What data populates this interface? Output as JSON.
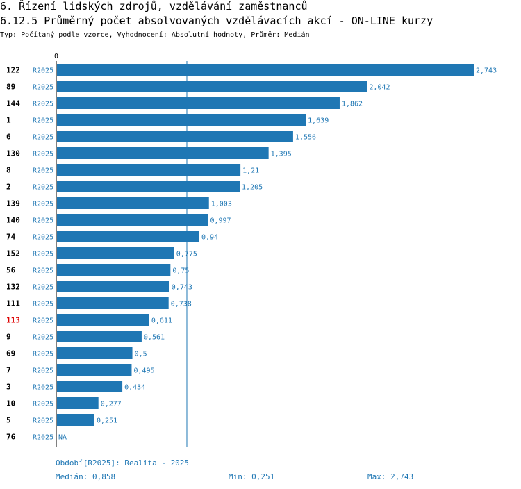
{
  "header": {
    "title": "6. Řízení lidských zdrojů, vzdělávání zaměstnanců",
    "subtitle": "6.12.5 Průměrný počet absolvovaných vzdělávacích akcí - ON-LINE kurzy",
    "description": "Typ: Počítaný podle vzorce, Vyhodnocení: Absolutní hodnoty, Průměr: Medián"
  },
  "chart_data": {
    "type": "bar",
    "orientation": "horizontal",
    "axis_zero_label": "0",
    "xlim": [
      0,
      2.743
    ],
    "median": 0.858,
    "colors": {
      "bar": "#1f77b4",
      "label": "#1f77b4",
      "highlight_id": "#dd0000",
      "id": "#000000"
    },
    "rows": [
      {
        "id": "122",
        "period": "R2025",
        "value": 2.743,
        "label": "2,743",
        "highlight": false
      },
      {
        "id": "89",
        "period": "R2025",
        "value": 2.042,
        "label": "2,042",
        "highlight": false
      },
      {
        "id": "144",
        "period": "R2025",
        "value": 1.862,
        "label": "1,862",
        "highlight": false
      },
      {
        "id": "1",
        "period": "R2025",
        "value": 1.639,
        "label": "1,639",
        "highlight": false
      },
      {
        "id": "6",
        "period": "R2025",
        "value": 1.556,
        "label": "1,556",
        "highlight": false
      },
      {
        "id": "130",
        "period": "R2025",
        "value": 1.395,
        "label": "1,395",
        "highlight": false
      },
      {
        "id": "8",
        "period": "R2025",
        "value": 1.21,
        "label": "1,21",
        "highlight": false
      },
      {
        "id": "2",
        "period": "R2025",
        "value": 1.205,
        "label": "1,205",
        "highlight": false
      },
      {
        "id": "139",
        "period": "R2025",
        "value": 1.003,
        "label": "1,003",
        "highlight": false
      },
      {
        "id": "140",
        "period": "R2025",
        "value": 0.997,
        "label": "0,997",
        "highlight": false
      },
      {
        "id": "74",
        "period": "R2025",
        "value": 0.94,
        "label": "0,94",
        "highlight": false
      },
      {
        "id": "152",
        "period": "R2025",
        "value": 0.775,
        "label": "0,775",
        "highlight": false
      },
      {
        "id": "56",
        "period": "R2025",
        "value": 0.75,
        "label": "0,75",
        "highlight": false
      },
      {
        "id": "132",
        "period": "R2025",
        "value": 0.743,
        "label": "0,743",
        "highlight": false
      },
      {
        "id": "111",
        "period": "R2025",
        "value": 0.738,
        "label": "0,738",
        "highlight": false
      },
      {
        "id": "113",
        "period": "R2025",
        "value": 0.611,
        "label": "0,611",
        "highlight": true
      },
      {
        "id": "9",
        "period": "R2025",
        "value": 0.561,
        "label": "0,561",
        "highlight": false
      },
      {
        "id": "69",
        "period": "R2025",
        "value": 0.5,
        "label": "0,5",
        "highlight": false
      },
      {
        "id": "7",
        "period": "R2025",
        "value": 0.495,
        "label": "0,495",
        "highlight": false
      },
      {
        "id": "3",
        "period": "R2025",
        "value": 0.434,
        "label": "0,434",
        "highlight": false
      },
      {
        "id": "10",
        "period": "R2025",
        "value": 0.277,
        "label": "0,277",
        "highlight": false
      },
      {
        "id": "5",
        "period": "R2025",
        "value": 0.251,
        "label": "0,251",
        "highlight": false
      },
      {
        "id": "76",
        "period": "R2025",
        "value": null,
        "label": "NA",
        "highlight": false
      }
    ]
  },
  "footer": {
    "period_legend": "Období[R2025]: Realita - 2025",
    "median_text": "Medián: 0,858",
    "min_text": "Min: 0,251",
    "max_text": "Max: 2,743"
  }
}
